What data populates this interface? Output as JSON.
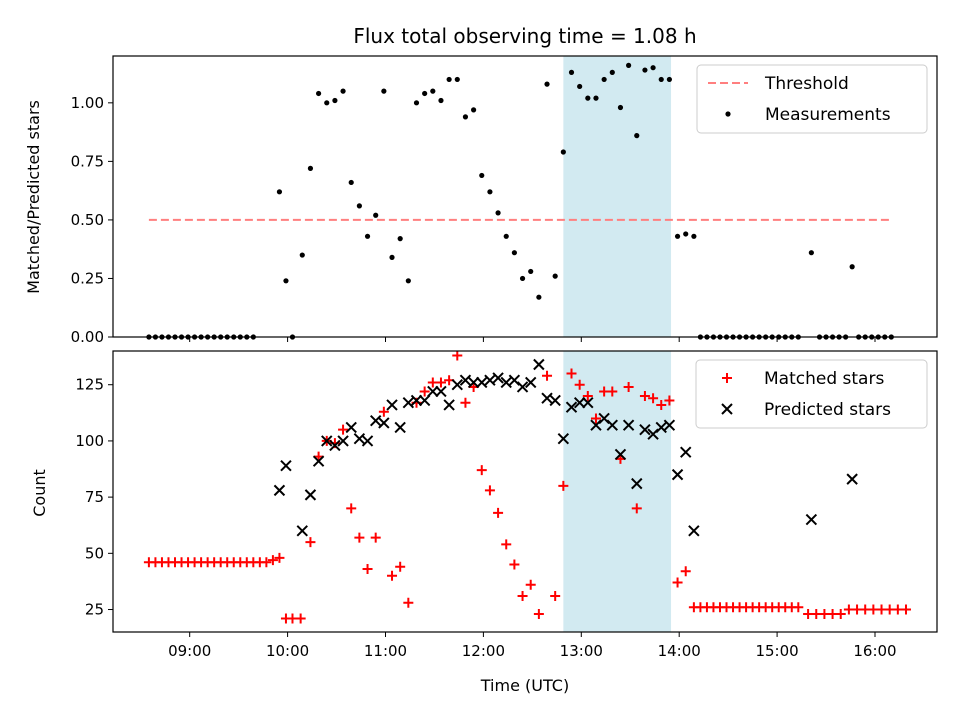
{
  "title": "Flux total observing time = 1.08 h",
  "xlabel": "Time (UTC)",
  "colors": {
    "threshold": "#ff7f7f",
    "measurement": "#000000",
    "matched": "#ff0000",
    "predicted": "#000000",
    "observing_window": "#add8e6"
  },
  "chart_data": [
    {
      "type": "scatter",
      "panel": "top",
      "ylabel": "Matched/Predicted stars",
      "xlim": [
        "08:13",
        "16:38"
      ],
      "ylim": [
        0,
        1.2
      ],
      "x_ticks": [
        "09:00",
        "10:00",
        "11:00",
        "12:00",
        "13:00",
        "14:00",
        "15:00",
        "16:00"
      ],
      "y_ticks": [
        "0.00",
        "0.25",
        "0.50",
        "0.75",
        "1.00"
      ],
      "y_tick_values": [
        0,
        0.25,
        0.5,
        0.75,
        1.0
      ],
      "legend_position": "top-right",
      "shaded_interval": [
        "12:49",
        "13:55"
      ],
      "threshold": {
        "name": "Threshold",
        "value": 0.5,
        "x_range": [
          "08:35",
          "16:10"
        ]
      },
      "measurements": {
        "name": "Measurements",
        "points": [
          [
            "08:35",
            0
          ],
          [
            "08:39",
            0
          ],
          [
            "08:43",
            0
          ],
          [
            "08:47",
            0
          ],
          [
            "08:51",
            0
          ],
          [
            "08:55",
            0
          ],
          [
            "08:59",
            0
          ],
          [
            "09:03",
            0
          ],
          [
            "09:07",
            0
          ],
          [
            "09:11",
            0
          ],
          [
            "09:15",
            0
          ],
          [
            "09:19",
            0
          ],
          [
            "09:23",
            0
          ],
          [
            "09:27",
            0
          ],
          [
            "09:31",
            0
          ],
          [
            "09:35",
            0
          ],
          [
            "09:39",
            0
          ],
          [
            "09:55",
            0.62
          ],
          [
            "09:59",
            0.24
          ],
          [
            "10:03",
            0
          ],
          [
            "10:09",
            0.35
          ],
          [
            "10:14",
            0.72
          ],
          [
            "10:19",
            1.04
          ],
          [
            "10:24",
            1.0
          ],
          [
            "10:29",
            1.01
          ],
          [
            "10:34",
            1.05
          ],
          [
            "10:39",
            0.66
          ],
          [
            "10:44",
            0.56
          ],
          [
            "10:49",
            0.43
          ],
          [
            "10:54",
            0.52
          ],
          [
            "10:59",
            1.05
          ],
          [
            "11:04",
            0.34
          ],
          [
            "11:09",
            0.42
          ],
          [
            "11:14",
            0.24
          ],
          [
            "11:19",
            1.0
          ],
          [
            "11:24",
            1.04
          ],
          [
            "11:29",
            1.05
          ],
          [
            "11:34",
            1.01
          ],
          [
            "11:39",
            1.1
          ],
          [
            "11:44",
            1.1
          ],
          [
            "11:49",
            0.94
          ],
          [
            "11:54",
            0.97
          ],
          [
            "11:59",
            0.69
          ],
          [
            "12:04",
            0.62
          ],
          [
            "12:09",
            0.53
          ],
          [
            "12:14",
            0.43
          ],
          [
            "12:19",
            0.36
          ],
          [
            "12:24",
            0.25
          ],
          [
            "12:29",
            0.28
          ],
          [
            "12:34",
            0.17
          ],
          [
            "12:39",
            1.08
          ],
          [
            "12:44",
            0.26
          ],
          [
            "12:49",
            0.79
          ],
          [
            "12:54",
            1.13
          ],
          [
            "12:59",
            1.07
          ],
          [
            "13:04",
            1.02
          ],
          [
            "13:09",
            1.02
          ],
          [
            "13:14",
            1.1
          ],
          [
            "13:19",
            1.13
          ],
          [
            "13:24",
            0.98
          ],
          [
            "13:29",
            1.16
          ],
          [
            "13:34",
            0.86
          ],
          [
            "13:39",
            1.14
          ],
          [
            "13:44",
            1.15
          ],
          [
            "13:49",
            1.1
          ],
          [
            "13:54",
            1.1
          ],
          [
            "13:59",
            0.43
          ],
          [
            "14:04",
            0.44
          ],
          [
            "14:09",
            0.43
          ],
          [
            "14:13",
            0
          ],
          [
            "14:17",
            0
          ],
          [
            "14:21",
            0
          ],
          [
            "14:25",
            0
          ],
          [
            "14:29",
            0
          ],
          [
            "14:33",
            0
          ],
          [
            "14:37",
            0
          ],
          [
            "14:41",
            0
          ],
          [
            "14:45",
            0
          ],
          [
            "14:49",
            0
          ],
          [
            "14:53",
            0
          ],
          [
            "14:57",
            0
          ],
          [
            "15:01",
            0
          ],
          [
            "15:05",
            0
          ],
          [
            "15:09",
            0
          ],
          [
            "15:13",
            0
          ],
          [
            "15:21",
            0.36
          ],
          [
            "15:26",
            0
          ],
          [
            "15:30",
            0
          ],
          [
            "15:34",
            0
          ],
          [
            "15:38",
            0
          ],
          [
            "15:42",
            0
          ],
          [
            "15:46",
            0.3
          ],
          [
            "15:50",
            0
          ],
          [
            "15:54",
            0
          ],
          [
            "15:58",
            0
          ],
          [
            "16:02",
            0
          ],
          [
            "16:06",
            0
          ],
          [
            "16:10",
            0
          ]
        ]
      }
    },
    {
      "type": "scatter",
      "panel": "bottom",
      "ylabel": "Count",
      "xlim": [
        "08:13",
        "16:38"
      ],
      "ylim": [
        15,
        140
      ],
      "x_ticks": [
        "09:00",
        "10:00",
        "11:00",
        "12:00",
        "13:00",
        "14:00",
        "15:00",
        "16:00"
      ],
      "y_ticks": [
        "25",
        "50",
        "75",
        "100",
        "125"
      ],
      "y_tick_values": [
        25,
        50,
        75,
        100,
        125
      ],
      "legend_position": "top-right",
      "shaded_interval": [
        "12:49",
        "13:55"
      ],
      "series": [
        {
          "name": "Matched stars",
          "marker": "plus",
          "points": [
            [
              "08:35",
              46
            ],
            [
              "08:39",
              46
            ],
            [
              "08:43",
              46
            ],
            [
              "08:47",
              46
            ],
            [
              "08:51",
              46
            ],
            [
              "08:55",
              46
            ],
            [
              "08:59",
              46
            ],
            [
              "09:03",
              46
            ],
            [
              "09:07",
              46
            ],
            [
              "09:11",
              46
            ],
            [
              "09:15",
              46
            ],
            [
              "09:19",
              46
            ],
            [
              "09:23",
              46
            ],
            [
              "09:27",
              46
            ],
            [
              "09:31",
              46
            ],
            [
              "09:35",
              46
            ],
            [
              "09:39",
              46
            ],
            [
              "09:43",
              46
            ],
            [
              "09:47",
              46
            ],
            [
              "09:51",
              47
            ],
            [
              "09:55",
              48
            ],
            [
              "09:59",
              21
            ],
            [
              "10:03",
              21
            ],
            [
              "10:08",
              21
            ],
            [
              "10:14",
              55
            ],
            [
              "10:19",
              93
            ],
            [
              "10:24",
              100
            ],
            [
              "10:29",
              99
            ],
            [
              "10:34",
              105
            ],
            [
              "10:39",
              70
            ],
            [
              "10:44",
              57
            ],
            [
              "10:49",
              43
            ],
            [
              "10:54",
              57
            ],
            [
              "10:59",
              113
            ],
            [
              "11:04",
              40
            ],
            [
              "11:09",
              44
            ],
            [
              "11:14",
              28
            ],
            [
              "11:19",
              117
            ],
            [
              "11:24",
              122
            ],
            [
              "11:29",
              126
            ],
            [
              "11:34",
              126
            ],
            [
              "11:39",
              127
            ],
            [
              "11:44",
              138
            ],
            [
              "11:49",
              117
            ],
            [
              "11:54",
              124
            ],
            [
              "11:59",
              87
            ],
            [
              "12:04",
              78
            ],
            [
              "12:09",
              68
            ],
            [
              "12:14",
              54
            ],
            [
              "12:19",
              45
            ],
            [
              "12:24",
              31
            ],
            [
              "12:29",
              36
            ],
            [
              "12:34",
              23
            ],
            [
              "12:39",
              129
            ],
            [
              "12:44",
              31
            ],
            [
              "12:49",
              80
            ],
            [
              "12:54",
              130
            ],
            [
              "12:59",
              125
            ],
            [
              "13:04",
              120
            ],
            [
              "13:09",
              110
            ],
            [
              "13:14",
              122
            ],
            [
              "13:19",
              122
            ],
            [
              "13:24",
              92
            ],
            [
              "13:29",
              124
            ],
            [
              "13:34",
              70
            ],
            [
              "13:39",
              120
            ],
            [
              "13:44",
              119
            ],
            [
              "13:49",
              116
            ],
            [
              "13:54",
              118
            ],
            [
              "13:59",
              37
            ],
            [
              "14:04",
              42
            ],
            [
              "14:09",
              26
            ],
            [
              "14:13",
              26
            ],
            [
              "14:17",
              26
            ],
            [
              "14:21",
              26
            ],
            [
              "14:25",
              26
            ],
            [
              "14:29",
              26
            ],
            [
              "14:33",
              26
            ],
            [
              "14:37",
              26
            ],
            [
              "14:41",
              26
            ],
            [
              "14:45",
              26
            ],
            [
              "14:49",
              26
            ],
            [
              "14:53",
              26
            ],
            [
              "14:57",
              26
            ],
            [
              "15:01",
              26
            ],
            [
              "15:05",
              26
            ],
            [
              "15:09",
              26
            ],
            [
              "15:13",
              26
            ],
            [
              "15:19",
              23
            ],
            [
              "15:24",
              23
            ],
            [
              "15:29",
              23
            ],
            [
              "15:34",
              23
            ],
            [
              "15:39",
              23
            ],
            [
              "15:44",
              25
            ],
            [
              "15:49",
              25
            ],
            [
              "15:54",
              25
            ],
            [
              "15:59",
              25
            ],
            [
              "16:04",
              25
            ],
            [
              "16:09",
              25
            ],
            [
              "16:14",
              25
            ],
            [
              "16:19",
              25
            ]
          ]
        },
        {
          "name": "Predicted stars",
          "marker": "x",
          "points": [
            [
              "09:55",
              78
            ],
            [
              "09:59",
              89
            ],
            [
              "10:09",
              60
            ],
            [
              "10:14",
              76
            ],
            [
              "10:19",
              91
            ],
            [
              "10:24",
              100
            ],
            [
              "10:29",
              98
            ],
            [
              "10:34",
              100
            ],
            [
              "10:39",
              106
            ],
            [
              "10:44",
              101
            ],
            [
              "10:49",
              100
            ],
            [
              "10:54",
              109
            ],
            [
              "10:59",
              108
            ],
            [
              "11:04",
              116
            ],
            [
              "11:09",
              106
            ],
            [
              "11:14",
              117
            ],
            [
              "11:19",
              118
            ],
            [
              "11:24",
              118
            ],
            [
              "11:29",
              122
            ],
            [
              "11:34",
              122
            ],
            [
              "11:39",
              116
            ],
            [
              "11:44",
              125
            ],
            [
              "11:49",
              127
            ],
            [
              "11:54",
              126
            ],
            [
              "11:59",
              126
            ],
            [
              "12:04",
              127
            ],
            [
              "12:09",
              128
            ],
            [
              "12:14",
              126
            ],
            [
              "12:19",
              127
            ],
            [
              "12:24",
              124
            ],
            [
              "12:29",
              126
            ],
            [
              "12:34",
              134
            ],
            [
              "12:39",
              119
            ],
            [
              "12:44",
              118
            ],
            [
              "12:49",
              101
            ],
            [
              "12:54",
              115
            ],
            [
              "12:59",
              117
            ],
            [
              "13:04",
              117
            ],
            [
              "13:09",
              107
            ],
            [
              "13:14",
              110
            ],
            [
              "13:19",
              107
            ],
            [
              "13:24",
              94
            ],
            [
              "13:29",
              107
            ],
            [
              "13:34",
              81
            ],
            [
              "13:39",
              105
            ],
            [
              "13:44",
              103
            ],
            [
              "13:49",
              106
            ],
            [
              "13:54",
              107
            ],
            [
              "13:59",
              85
            ],
            [
              "14:04",
              95
            ],
            [
              "14:09",
              60
            ],
            [
              "15:21",
              65
            ],
            [
              "15:46",
              83
            ]
          ]
        }
      ]
    }
  ]
}
